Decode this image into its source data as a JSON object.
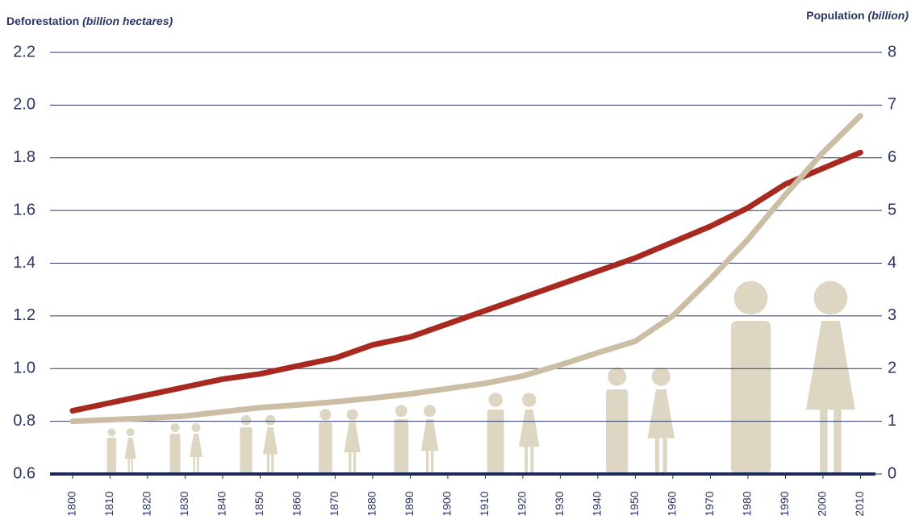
{
  "chart_data": {
    "type": "line",
    "y_label": "Deforestation",
    "y_unit": "(billion hectares)",
    "y2_label": "Population",
    "y2_unit": "(billion)",
    "x": [
      1800,
      1810,
      1820,
      1830,
      1840,
      1850,
      1860,
      1870,
      1880,
      1890,
      1900,
      1910,
      1920,
      1930,
      1940,
      1950,
      1960,
      1970,
      1980,
      1990,
      2000,
      2010
    ],
    "xlim": [
      1794,
      2014
    ],
    "xticks": [
      1800,
      1810,
      1820,
      1830,
      1840,
      1850,
      1860,
      1870,
      1880,
      1890,
      1900,
      1910,
      1920,
      1930,
      1940,
      1950,
      1960,
      1970,
      1980,
      1990,
      2000,
      2010
    ],
    "ylim": [
      0.6,
      2.2
    ],
    "yticks": [
      0.6,
      0.8,
      {
        "value": 1,
        "label": "1.0"
      },
      1.2,
      1.4,
      1.6,
      1.8,
      {
        "value": 2,
        "label": "2.0"
      },
      2.2
    ],
    "y2lim": [
      0,
      8
    ],
    "y2ticks": [
      0,
      1,
      2,
      3,
      4,
      5,
      6,
      7,
      8
    ],
    "grid": true,
    "series": [
      {
        "name": "Deforestation",
        "color": "#a8291f",
        "values": [
          0.84,
          0.87,
          0.9,
          0.93,
          0.96,
          0.98,
          1.01,
          1.04,
          1.09,
          1.12,
          1.17,
          1.22,
          1.27,
          1.32,
          1.37,
          1.42,
          1.48,
          1.54,
          1.61,
          1.7,
          1.76,
          1.82
        ]
      },
      {
        "name": "Population",
        "color": "#cbbea4",
        "axis": "y2",
        "values": [
          1.0,
          1.03,
          1.06,
          1.1,
          1.18,
          1.26,
          1.31,
          1.37,
          1.44,
          1.52,
          1.62,
          1.72,
          1.86,
          2.07,
          2.3,
          2.52,
          3.0,
          3.7,
          4.45,
          5.3,
          6.1,
          6.8
        ]
      }
    ]
  }
}
